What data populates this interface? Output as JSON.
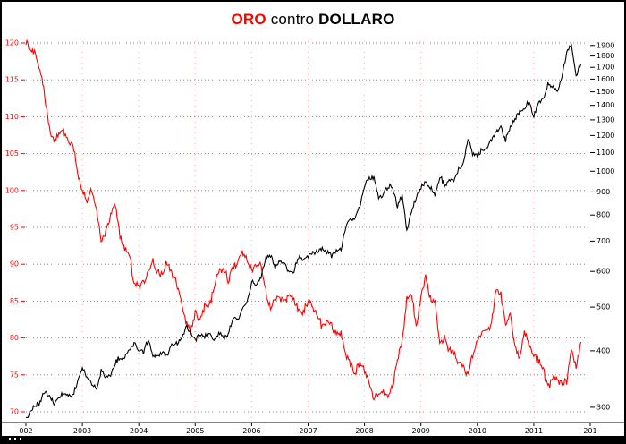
{
  "title": {
    "part1": "ORO",
    "part2": " contro ",
    "part3": "DOLLARO"
  },
  "colors": {
    "red": "#ff0000",
    "black": "#000000",
    "grid_h": "#ff5555",
    "grid_v": "#ffaaaa"
  },
  "chart_data": {
    "type": "line",
    "title": "ORO contro DOLLARO",
    "x_start_year": 2002,
    "x_end_year": 2012,
    "x_tick_labels": [
      "002",
      "2003",
      "2004",
      "2005",
      "2006",
      "2007",
      "2008",
      "2009",
      "2010",
      "2011",
      "201"
    ],
    "left_axis": {
      "scale": "linear",
      "min": 70,
      "max": 120,
      "tick_step": 5,
      "ticks": [
        120,
        115,
        110,
        105,
        100,
        95,
        90,
        85,
        80,
        75,
        70
      ],
      "color": "#ff0000"
    },
    "right_axis": {
      "scale": "log",
      "min": 300,
      "max": 1900,
      "ticks": [
        1900,
        1800,
        1700,
        1600,
        1500,
        1400,
        1300,
        1200,
        1100,
        1000,
        900,
        800,
        700,
        600,
        500,
        400,
        300
      ],
      "color": "#000000"
    },
    "grid": {
      "horizontal_dotted": true,
      "vertical_dotted": true
    },
    "legend": "none",
    "series": [
      {
        "name": "DOLLARO",
        "axis": "left",
        "color": "#ff0000",
        "start": "2002-01",
        "interval": "monthly",
        "values": [
          120.2,
          119.0,
          118.7,
          116.2,
          113.0,
          108.5,
          106.5,
          107.8,
          108.0,
          107.0,
          106.2,
          102.3,
          100.2,
          98.6,
          100.3,
          97.3,
          93.2,
          94.6,
          96.6,
          98.4,
          93.8,
          92.4,
          91.3,
          87.4,
          87.0,
          87.5,
          88.7,
          90.4,
          88.9,
          88.8,
          90.2,
          88.6,
          87.7,
          85.0,
          82.1,
          80.9,
          83.4,
          82.6,
          84.2,
          84.5,
          86.8,
          89.0,
          89.6,
          87.8,
          89.6,
          90.1,
          91.9,
          90.9,
          89.4,
          90.1,
          89.6,
          86.2,
          84.0,
          85.6,
          85.2,
          85.0,
          85.7,
          85.4,
          83.6,
          83.4,
          85.0,
          84.1,
          83.4,
          81.5,
          82.1,
          81.6,
          80.6,
          80.9,
          77.9,
          76.4,
          75.3,
          76.6,
          75.5,
          73.7,
          71.6,
          72.7,
          72.9,
          72.5,
          73.4,
          77.2,
          79.6,
          85.4,
          86.2,
          81.2,
          85.8,
          88.1,
          85.4,
          84.6,
          79.5,
          80.1,
          78.3,
          78.1,
          76.6,
          76.2,
          74.9,
          77.7,
          79.4,
          80.6,
          81.1,
          81.9,
          86.6,
          86.0,
          81.6,
          83.2,
          78.7,
          77.2,
          81.2,
          79.0,
          77.7,
          76.9,
          75.9,
          73.1,
          74.6,
          74.4,
          73.9,
          74.1,
          78.6,
          76.2,
          79.2
        ]
      },
      {
        "name": "ORO",
        "axis": "right",
        "color": "#000000",
        "start": "2002-01",
        "interval": "monthly",
        "values": [
          282,
          296,
          302,
          308,
          326,
          318,
          305,
          312,
          323,
          317,
          320,
          343,
          368,
          350,
          336,
          329,
          361,
          346,
          355,
          376,
          388,
          385,
          398,
          416,
          402,
          396,
          424,
          388,
          394,
          395,
          391,
          410,
          416,
          425,
          453,
          438,
          423,
          435,
          429,
          436,
          419,
          437,
          430,
          433,
          473,
          470,
          495,
          513,
          568,
          556,
          582,
          644,
          648,
          614,
          634,
          623,
          599,
          604,
          647,
          636,
          651,
          665,
          663,
          677,
          660,
          651,
          666,
          673,
          744,
          790,
          783,
          834,
          923,
          972,
          968,
          871,
          886,
          930,
          915,
          833,
          885,
          731,
          817,
          870,
          920,
          952,
          917,
          884,
          976,
          934,
          954,
          955,
          1008,
          1040,
          1176,
          1096,
          1083,
          1118,
          1116,
          1180,
          1215,
          1244,
          1170,
          1246,
          1308,
          1358,
          1384,
          1421,
          1327,
          1411,
          1439,
          1557,
          1536,
          1502,
          1630,
          1828,
          1898,
          1620,
          1745
        ]
      }
    ],
    "render_hints": {
      "substeps": 5,
      "jitter_dollaro": 0.45,
      "jitter_oro_pct": 0.011
    }
  }
}
